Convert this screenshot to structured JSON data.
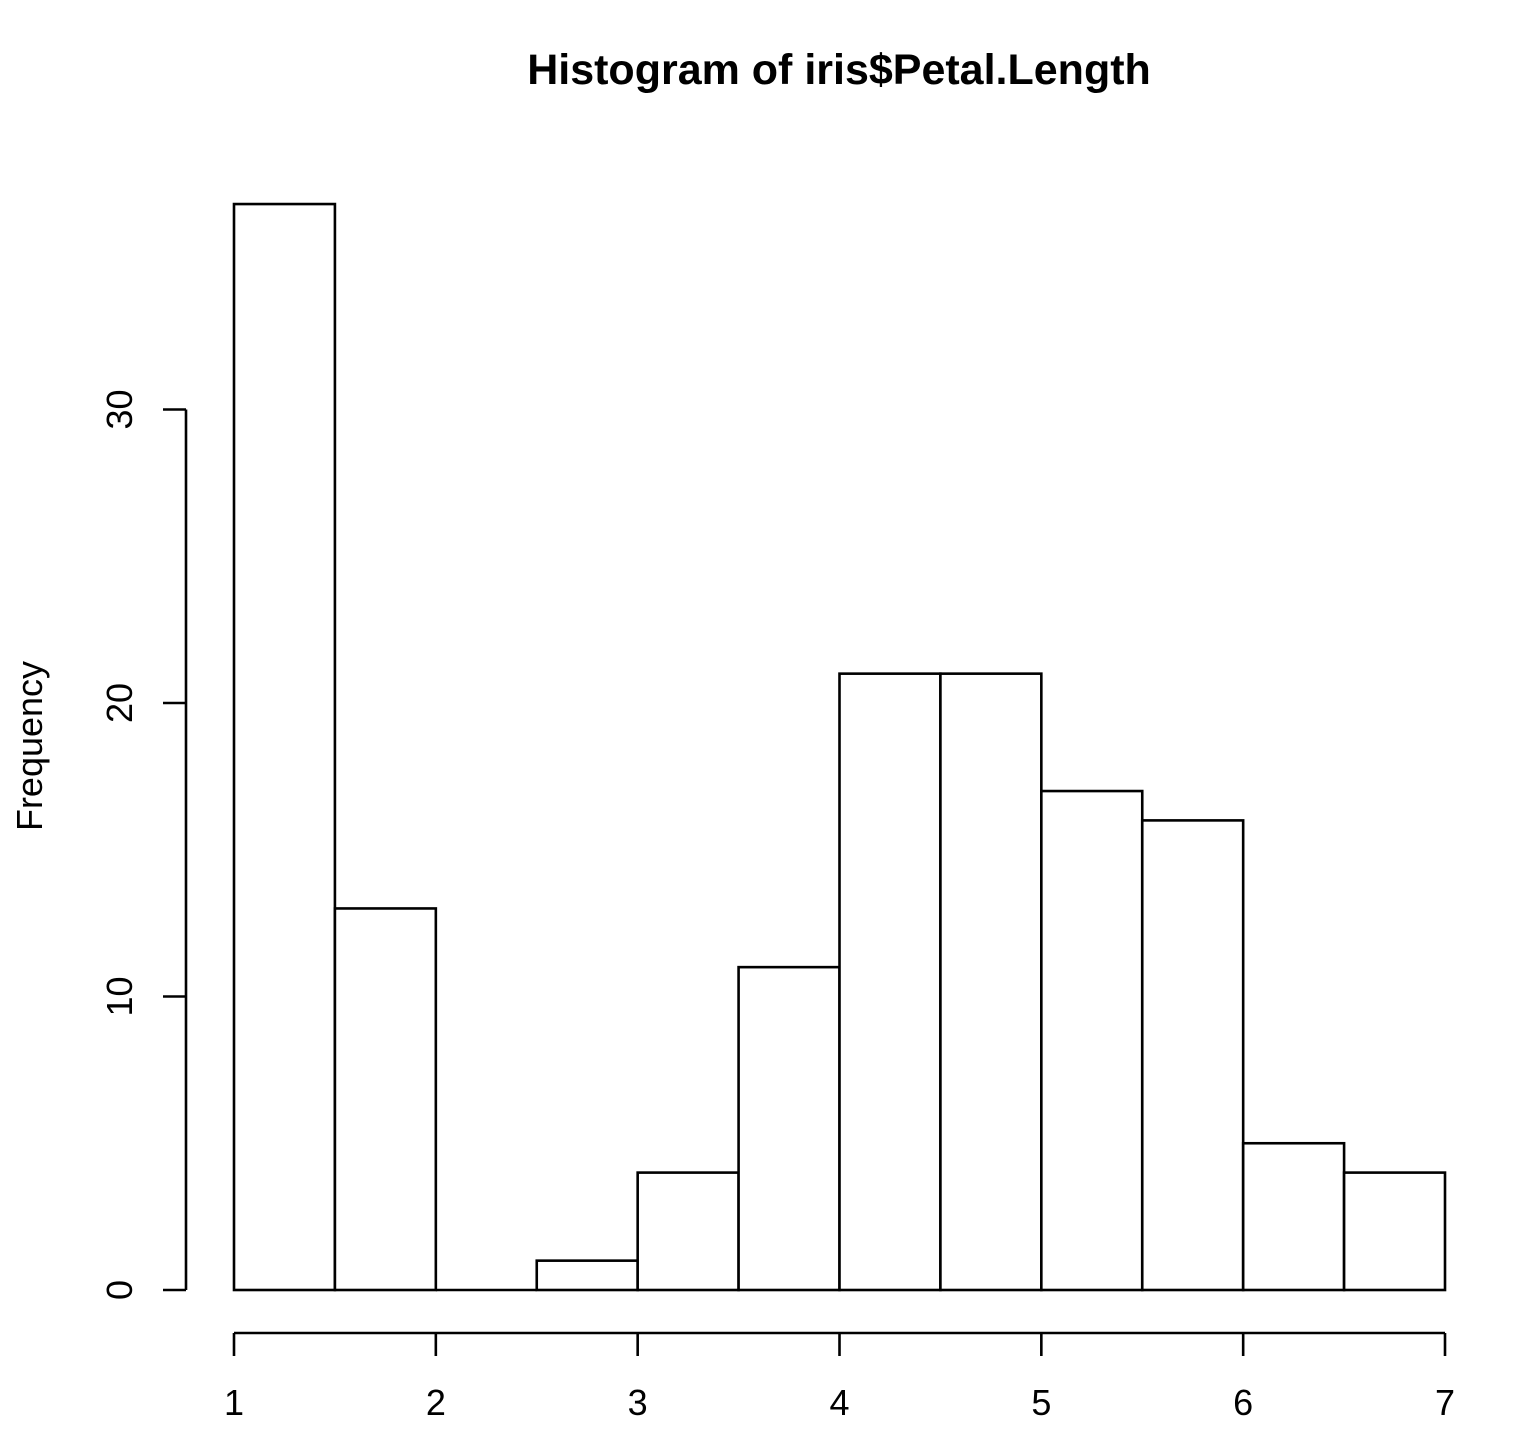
{
  "chart_data": {
    "type": "bar",
    "title": "Histogram of iris$Petal.Length",
    "xlabel": "",
    "ylabel": "Frequency",
    "bins": [
      {
        "from": 1.0,
        "to": 1.5,
        "count": 37
      },
      {
        "from": 1.5,
        "to": 2.0,
        "count": 13
      },
      {
        "from": 2.0,
        "to": 2.5,
        "count": 0
      },
      {
        "from": 2.5,
        "to": 3.0,
        "count": 1
      },
      {
        "from": 3.0,
        "to": 3.5,
        "count": 4
      },
      {
        "from": 3.5,
        "to": 4.0,
        "count": 11
      },
      {
        "from": 4.0,
        "to": 4.5,
        "count": 21
      },
      {
        "from": 4.5,
        "to": 5.0,
        "count": 21
      },
      {
        "from": 5.0,
        "to": 5.5,
        "count": 17
      },
      {
        "from": 5.5,
        "to": 6.0,
        "count": 16
      },
      {
        "from": 6.0,
        "to": 6.5,
        "count": 5
      },
      {
        "from": 6.5,
        "to": 7.0,
        "count": 4
      }
    ],
    "xlim": [
      1,
      7
    ],
    "ylim": [
      0,
      37
    ],
    "xticks": [
      1,
      2,
      3,
      4,
      5,
      6,
      7
    ],
    "yticks": [
      0,
      10,
      20,
      30
    ],
    "xtick_labels": [
      "1",
      "2",
      "3",
      "4",
      "5",
      "6",
      "7"
    ],
    "ytick_labels": [
      "0",
      "10",
      "20",
      "30"
    ],
    "grid": false
  }
}
